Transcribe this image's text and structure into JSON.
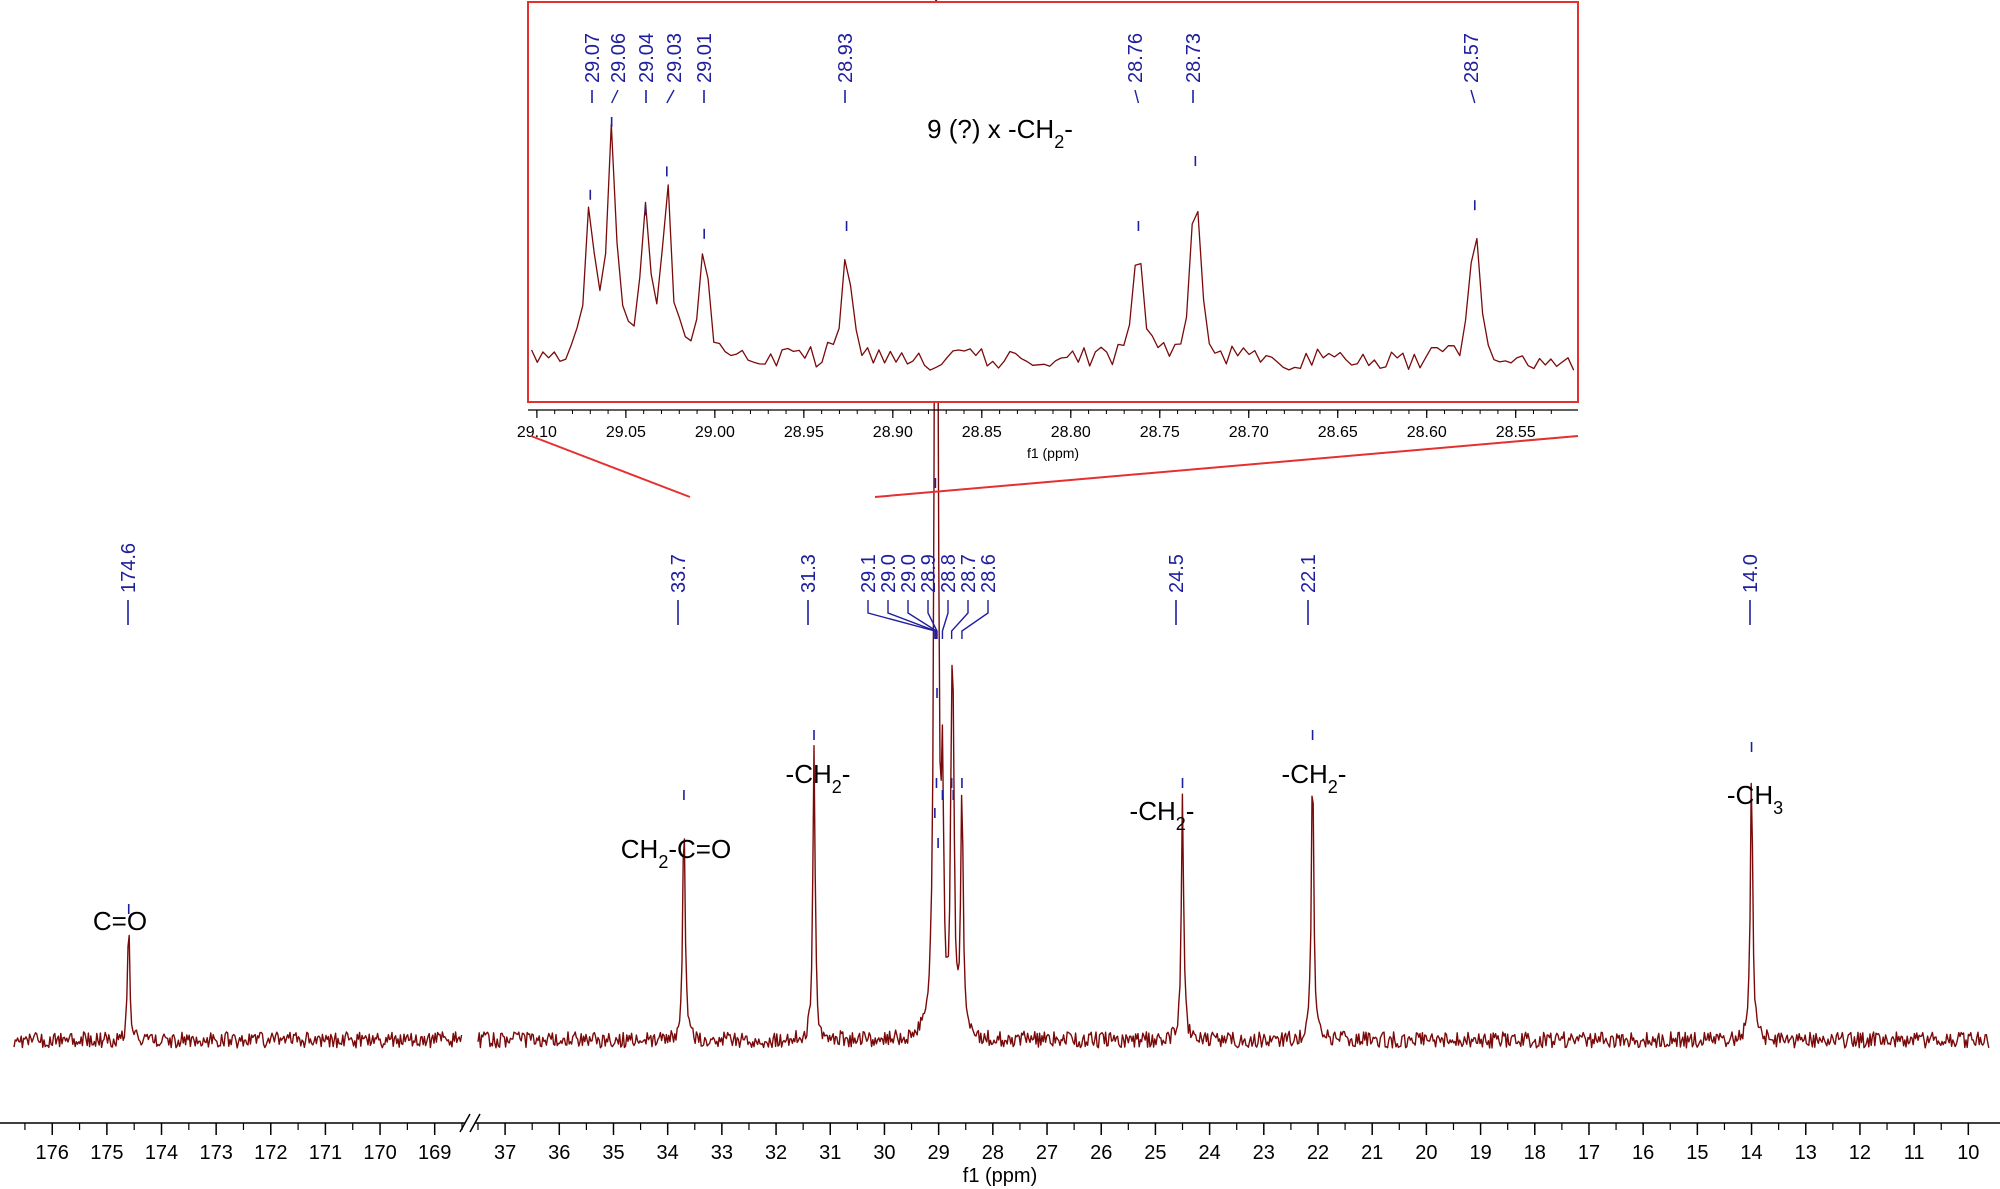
{
  "chart_data": [
    {
      "type": "line",
      "xlabel": "f1 (ppm)",
      "axis_break": {
        "from": 168.5,
        "to": 37.5
      },
      "segments": [
        {
          "xlim": [
            176.7,
            168.5
          ],
          "ticks": [
            176,
            175,
            174,
            173,
            172,
            171,
            170,
            169
          ]
        },
        {
          "xlim": [
            37.5,
            9.6
          ],
          "ticks": [
            37,
            36,
            35,
            34,
            33,
            32,
            31,
            30,
            29,
            28,
            27,
            26,
            25,
            24,
            23,
            22,
            21,
            20,
            19,
            18,
            17,
            16,
            15,
            14,
            13,
            12,
            11,
            10
          ]
        }
      ],
      "peak_labels": [
        "174.6",
        "33.7",
        "31.3",
        "29.1",
        "29.0",
        "29.0",
        "28.9",
        "28.8",
        "28.7",
        "28.6",
        "24.5",
        "22.1",
        "14.0"
      ],
      "peaks": [
        {
          "x": 174.6,
          "intensity": 0.19
        },
        {
          "x": 33.7,
          "intensity": 0.38
        },
        {
          "x": 31.3,
          "intensity": 0.48
        },
        {
          "x": 29.07,
          "intensity": 0.35
        },
        {
          "x": 29.06,
          "intensity": 0.9
        },
        {
          "x": 29.04,
          "intensity": 0.4
        },
        {
          "x": 29.03,
          "intensity": 0.55
        },
        {
          "x": 29.01,
          "intensity": 0.3
        },
        {
          "x": 28.93,
          "intensity": 0.38
        },
        {
          "x": 28.76,
          "intensity": 0.4
        },
        {
          "x": 28.73,
          "intensity": 0.38
        },
        {
          "x": 28.57,
          "intensity": 0.4
        },
        {
          "x": 24.5,
          "intensity": 0.4
        },
        {
          "x": 22.1,
          "intensity": 0.48
        },
        {
          "x": 14.0,
          "intensity": 0.46
        }
      ],
      "annotations": [
        {
          "x": 174.6,
          "text": "C=O"
        },
        {
          "x": 33.7,
          "text": "CH2-C=O",
          "italic_text": "H2"
        },
        {
          "x": 31.3,
          "text": "-CH2-"
        },
        {
          "x": 24.5,
          "text": "-CH2-"
        },
        {
          "x": 22.1,
          "text": "-CH2-"
        },
        {
          "x": 14.0,
          "text": "-CH3"
        }
      ]
    },
    {
      "type": "line",
      "name": "inset",
      "xlabel": "f1 (ppm)",
      "xlim": [
        29.105,
        28.515
      ],
      "ticks": [
        "29.10",
        "29.05",
        "29.00",
        "28.95",
        "28.90",
        "28.85",
        "28.80",
        "28.75",
        "28.70",
        "28.65",
        "28.60",
        "28.55"
      ],
      "peak_labels": [
        "29.07",
        "29.06",
        "29.04",
        "29.03",
        "29.01",
        "28.93",
        "28.76",
        "28.73",
        "28.57"
      ],
      "peaks": [
        {
          "x": 29.07,
          "intensity": 0.57
        },
        {
          "x": 29.058,
          "intensity": 0.85
        },
        {
          "x": 29.039,
          "intensity": 0.51
        },
        {
          "x": 29.027,
          "intensity": 0.66
        },
        {
          "x": 29.006,
          "intensity": 0.42
        },
        {
          "x": 28.926,
          "intensity": 0.45
        },
        {
          "x": 28.762,
          "intensity": 0.45
        },
        {
          "x": 28.73,
          "intensity": 0.7
        },
        {
          "x": 28.573,
          "intensity": 0.53
        }
      ],
      "annotation": {
        "text": "9 (?) x -CH2-"
      }
    }
  ],
  "colors": {
    "spectrum": "#7a0a0a",
    "peak_label": "#1f1f9e",
    "inset_frame": "#e53030",
    "axis": "#000000"
  }
}
